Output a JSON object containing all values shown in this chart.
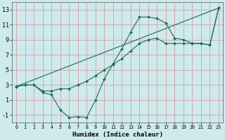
{
  "xlabel": "Humidex (Indice chaleur)",
  "bg_color": "#ceeaed",
  "grid_color": "#d4a0a0",
  "line_color": "#1a6b5a",
  "xlim": [
    -0.5,
    23.5
  ],
  "ylim": [
    -2.0,
    14.0
  ],
  "yticks": [
    -1,
    1,
    3,
    5,
    7,
    9,
    11,
    13
  ],
  "xticks": [
    0,
    1,
    2,
    3,
    4,
    5,
    6,
    7,
    8,
    9,
    10,
    11,
    12,
    13,
    14,
    15,
    16,
    17,
    18,
    19,
    20,
    21,
    22,
    23
  ],
  "line1_x": [
    0,
    1,
    2,
    3,
    4,
    5,
    6,
    7,
    8,
    9,
    10,
    11,
    12,
    13,
    14,
    15,
    16,
    17,
    18,
    19,
    20,
    21,
    22,
    23
  ],
  "line1_y": [
    2.8,
    3.0,
    3.0,
    2.2,
    2.2,
    2.5,
    2.5,
    3.0,
    3.5,
    4.2,
    5.0,
    5.7,
    6.5,
    7.5,
    8.5,
    9.0,
    9.2,
    8.5,
    8.5,
    8.5,
    8.5,
    8.5,
    8.3,
    13.2
  ],
  "line2_x": [
    0,
    1,
    2,
    3,
    4,
    5,
    6,
    7,
    8,
    9,
    10,
    11,
    12,
    13,
    14,
    15,
    16,
    17,
    18,
    19,
    20,
    21,
    22,
    23
  ],
  "line2_y": [
    2.8,
    3.0,
    3.0,
    2.0,
    1.7,
    -0.3,
    -1.3,
    -1.2,
    -1.3,
    1.0,
    3.8,
    5.8,
    7.8,
    10.0,
    12.0,
    12.0,
    11.8,
    11.2,
    9.2,
    9.0,
    8.5,
    8.5,
    8.3,
    13.2
  ],
  "line3_x": [
    0,
    23
  ],
  "line3_y": [
    2.8,
    13.2
  ]
}
